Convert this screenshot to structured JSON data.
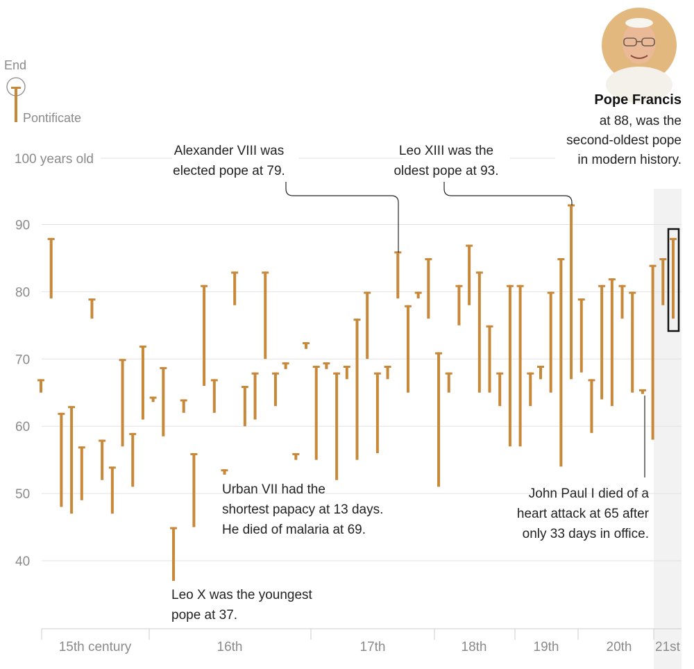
{
  "legend": {
    "end_label": "End",
    "pontificate_label": "Pontificate"
  },
  "highlight": {
    "name": "Pope Francis",
    "lines": [
      "at 88, was the",
      "second-oldest pope",
      "in modern history."
    ]
  },
  "annotations": {
    "alexander": [
      "Alexander VIII was",
      "elected pope at 79."
    ],
    "leo13": [
      "Leo XIII was the",
      "oldest pope at 93."
    ],
    "urban": [
      "Urban VII had the",
      "shortest papacy at 13 days.",
      "He died of malaria at 69."
    ],
    "leo10": [
      "Leo X was the youngest",
      "pope at 37."
    ],
    "jp1": [
      "John Paul I died of a",
      "heart attack at 65 after",
      "only 33 days in office."
    ]
  },
  "colors": {
    "bar": "#c8883a",
    "grid": "#e2e2e2",
    "highlight_band": "#f2f2f2"
  },
  "chart_data": {
    "type": "range-bar",
    "y_label_top": "100 years old",
    "yticks": [
      40,
      50,
      60,
      70,
      80,
      90
    ],
    "ylim": [
      33,
      100
    ],
    "centuries": [
      "15th century",
      "16th",
      "17th",
      "18th",
      "19th",
      "20th",
      "21st"
    ],
    "pontificates": [
      {
        "start": 65,
        "end": 67
      },
      {
        "start": 79,
        "end": 88
      },
      {
        "start": 48,
        "end": 62
      },
      {
        "start": 47,
        "end": 63
      },
      {
        "start": 49,
        "end": 57
      },
      {
        "start": 76,
        "end": 79
      },
      {
        "start": 52,
        "end": 58
      },
      {
        "start": 47,
        "end": 54
      },
      {
        "start": 57,
        "end": 70
      },
      {
        "start": 51,
        "end": 59
      },
      {
        "start": 61,
        "end": 72
      },
      {
        "start": 63.6,
        "end": 64.4
      },
      {
        "start": 58.5,
        "end": 68.8
      },
      {
        "start": 37,
        "end": 45
      },
      {
        "start": 62,
        "end": 64
      },
      {
        "start": 45,
        "end": 56
      },
      {
        "start": 66,
        "end": 81
      },
      {
        "start": 62,
        "end": 67
      },
      {
        "start": 52.8,
        "end": 53.6
      },
      {
        "start": 78,
        "end": 83
      },
      {
        "start": 60,
        "end": 66
      },
      {
        "start": 61,
        "end": 68
      },
      {
        "start": 70,
        "end": 83
      },
      {
        "start": 63,
        "end": 68
      },
      {
        "start": 68.5,
        "end": 69.5
      },
      {
        "start": 55,
        "end": 56
      },
      {
        "start": 71.5,
        "end": 72.5
      },
      {
        "start": 55,
        "end": 69
      },
      {
        "start": 68.5,
        "end": 69.5
      },
      {
        "start": 52,
        "end": 68
      },
      {
        "start": 67,
        "end": 69
      },
      {
        "start": 55,
        "end": 76
      },
      {
        "start": 70,
        "end": 80
      },
      {
        "start": 56,
        "end": 68
      },
      {
        "start": 67,
        "end": 69
      },
      {
        "start": 79,
        "end": 86
      },
      {
        "start": 65,
        "end": 78
      },
      {
        "start": 79,
        "end": 80
      },
      {
        "start": 76,
        "end": 85
      },
      {
        "start": 51,
        "end": 71
      },
      {
        "start": 65,
        "end": 68
      },
      {
        "start": 75,
        "end": 81
      },
      {
        "start": 78,
        "end": 87
      },
      {
        "start": 65,
        "end": 83
      },
      {
        "start": 65,
        "end": 75
      },
      {
        "start": 63,
        "end": 68
      },
      {
        "start": 57,
        "end": 81
      },
      {
        "start": 57,
        "end": 81
      },
      {
        "start": 63,
        "end": 68
      },
      {
        "start": 67,
        "end": 69
      },
      {
        "start": 65,
        "end": 80
      },
      {
        "start": 54,
        "end": 85
      },
      {
        "start": 67,
        "end": 93
      },
      {
        "start": 68,
        "end": 79
      },
      {
        "start": 59,
        "end": 67
      },
      {
        "start": 64,
        "end": 81
      },
      {
        "start": 63,
        "end": 82
      },
      {
        "start": 76,
        "end": 81
      },
      {
        "start": 65,
        "end": 80
      },
      {
        "start": 64.8,
        "end": 65.5
      },
      {
        "start": 58,
        "end": 84
      },
      {
        "start": 78,
        "end": 85
      },
      {
        "start": 76,
        "end": 88
      }
    ]
  }
}
